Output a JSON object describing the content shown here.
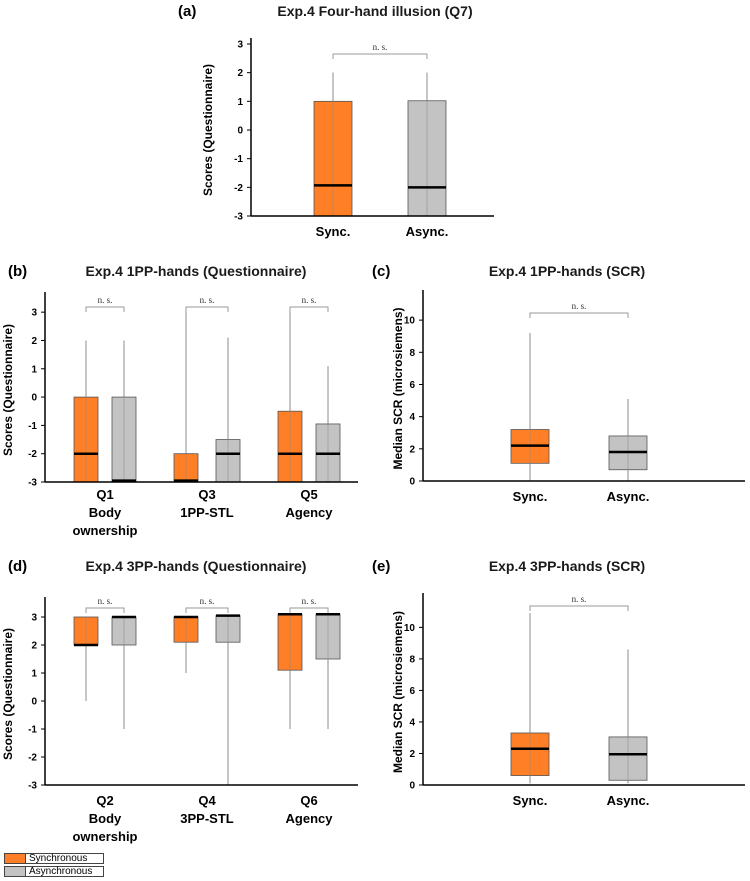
{
  "colors": {
    "sync": "#ff7f27",
    "async": "#c3c3c3",
    "axis": "#000000",
    "whisker": "#8c8c8c",
    "sigline": "#9a9a9a",
    "median": "#000000"
  },
  "legend": {
    "sync_label": "Synchronous",
    "async_label": "Asynchronous"
  },
  "chart_data": [
    {
      "id": "a",
      "panel_label": "(a)",
      "type": "boxplot",
      "title": "Exp.4 Four-hand illusion (Q7)",
      "ylabel": "Scores (Questionnaire)",
      "ylim": [
        -3,
        3
      ],
      "yticks": [
        -3,
        -2,
        -1,
        0,
        1,
        2,
        3
      ],
      "groups": [
        {
          "labels": [
            "Sync.",
            "Async."
          ],
          "significance": "n. s.",
          "boxes": [
            {
              "condition": "sync",
              "min": -3,
              "q1": -3,
              "median": -1.93,
              "q3": 1,
              "max": 2
            },
            {
              "condition": "async",
              "min": -3,
              "q1": -3,
              "median": -2,
              "q3": 1.02,
              "max": 2
            }
          ]
        }
      ]
    },
    {
      "id": "b",
      "panel_label": "(b)",
      "type": "boxplot",
      "title": "Exp.4 1PP-hands (Questionnaire)",
      "ylabel": "Scores (Questionnaire)",
      "ylim": [
        -3,
        3.5
      ],
      "yticks": [
        -3,
        -2,
        -1,
        0,
        1,
        2,
        3
      ],
      "groups": [
        {
          "labels": [
            "Q1",
            "Body",
            "ownership"
          ],
          "significance": "n. s.",
          "boxes": [
            {
              "condition": "sync",
              "min": -3,
              "q1": -3,
              "median": -2,
              "q3": 0,
              "max": 2
            },
            {
              "condition": "async",
              "min": -3,
              "q1": -3,
              "median": -2.95,
              "q3": 0,
              "max": 2
            }
          ]
        },
        {
          "labels": [
            "Q3",
            "1PP-STL"
          ],
          "significance": "n. s.",
          "boxes": [
            {
              "condition": "sync",
              "min": -3,
              "q1": -3,
              "median": -2.95,
              "q3": -2,
              "max": 3
            },
            {
              "condition": "async",
              "min": -3,
              "q1": -3,
              "median": -2,
              "q3": -1.5,
              "max": 2.1
            }
          ]
        },
        {
          "labels": [
            "Q5",
            "Agency"
          ],
          "significance": "n. s.",
          "boxes": [
            {
              "condition": "sync",
              "min": -3,
              "q1": -3,
              "median": -2,
              "q3": -0.5,
              "max": 3
            },
            {
              "condition": "async",
              "min": -3,
              "q1": -3,
              "median": -2,
              "q3": -0.95,
              "max": 1.1
            }
          ]
        }
      ]
    },
    {
      "id": "c",
      "panel_label": "(c)",
      "type": "boxplot",
      "title": "Exp.4 1PP-hands (SCR)",
      "ylabel": "Median SCR (microsiemens)",
      "ylim": [
        0,
        11.5
      ],
      "yticks": [
        0,
        2,
        4,
        6,
        8,
        10
      ],
      "groups": [
        {
          "labels": [
            "Sync.",
            "Async."
          ],
          "significance": "n. s.",
          "boxes": [
            {
              "condition": "sync",
              "min": 0.05,
              "q1": 1.1,
              "median": 2.2,
              "q3": 3.2,
              "max": 9.2
            },
            {
              "condition": "async",
              "min": 0.05,
              "q1": 0.7,
              "median": 1.8,
              "q3": 2.8,
              "max": 5.1
            }
          ]
        }
      ]
    },
    {
      "id": "d",
      "panel_label": "(d)",
      "type": "boxplot",
      "title": "Exp.4 3PP-hands (Questionnaire)",
      "ylabel": "Scores (Questionnaire)",
      "ylim": [
        -3,
        3.5
      ],
      "yticks": [
        -3,
        -2,
        -1,
        0,
        1,
        2,
        3
      ],
      "groups": [
        {
          "labels": [
            "Q2",
            "Body",
            "ownership"
          ],
          "significance": "n. s.",
          "boxes": [
            {
              "condition": "sync",
              "min": 0,
              "q1": 2,
              "median": 2,
              "q3": 3,
              "max": 3
            },
            {
              "condition": "async",
              "min": -1,
              "q1": 2,
              "median": 3,
              "q3": 3,
              "max": 3
            }
          ]
        },
        {
          "labels": [
            "Q4",
            "3PP-STL"
          ],
          "significance": "n. s.",
          "boxes": [
            {
              "condition": "sync",
              "min": 1,
              "q1": 2.1,
              "median": 3,
              "q3": 3,
              "max": 3
            },
            {
              "condition": "async",
              "min": -3,
              "q1": 2.1,
              "median": 3.05,
              "q3": 3.05,
              "max": 3.05
            }
          ]
        },
        {
          "labels": [
            "Q6",
            "Agency"
          ],
          "significance": "n. s.",
          "boxes": [
            {
              "condition": "sync",
              "min": -1,
              "q1": 1.1,
              "median": 3.1,
              "q3": 3.1,
              "max": 3.1
            },
            {
              "condition": "async",
              "min": -1,
              "q1": 1.5,
              "median": 3.1,
              "q3": 3.1,
              "max": 3.1
            }
          ]
        }
      ]
    },
    {
      "id": "e",
      "panel_label": "(e)",
      "type": "boxplot",
      "title": "Exp.4 3PP-hands (SCR)",
      "ylabel": "Median SCR (microsiemens)",
      "ylim": [
        0,
        11.8
      ],
      "yticks": [
        0,
        2,
        4,
        6,
        8,
        10
      ],
      "groups": [
        {
          "labels": [
            "Sync.",
            "Async."
          ],
          "significance": "n. s.",
          "boxes": [
            {
              "condition": "sync",
              "min": 0.1,
              "q1": 0.6,
              "median": 2.3,
              "q3": 3.3,
              "max": 10.9
            },
            {
              "condition": "async",
              "min": 0.1,
              "q1": 0.3,
              "median": 1.95,
              "q3": 3.05,
              "max": 8.6
            }
          ]
        }
      ]
    }
  ]
}
